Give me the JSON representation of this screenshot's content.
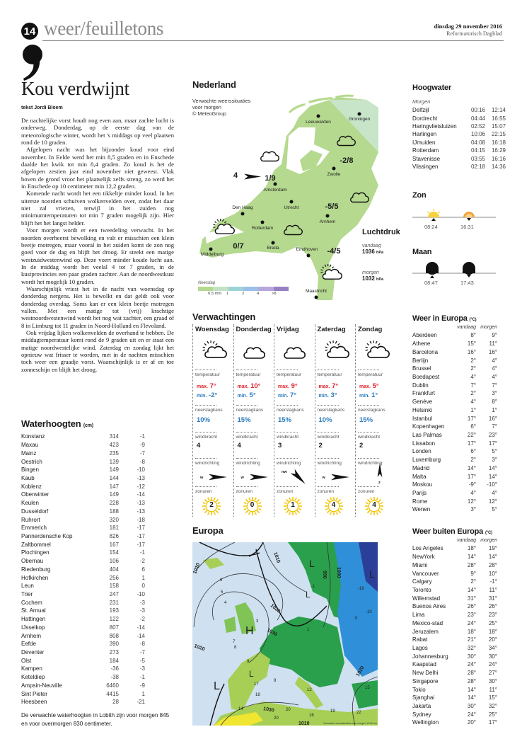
{
  "header": {
    "page_number": "14",
    "section": "weer/feuilletons",
    "date": "dinsdag 29 november 2016",
    "paper": "Reformatorisch Dagblad"
  },
  "article": {
    "title": "Kou verdwijnt",
    "byline": "tekst Jordi Bloem",
    "paragraphs": [
      "De nachtelijke vorst houdt nog even aan, maar zachte lucht is onderweg. Donderdag, op de eerste dag van de meteorologische winter, wordt het 's middags op veel plaatsen rond de 10 graden.",
      "Afgelopen nacht was het bijzonder koud voor eind november. In Eelde werd het min 8,5 graden en in Enschede daalde het kwik tot min 8,4 graden. Zo koud is het de afgelopen zestien jaar eind november niet geweest. Vlak boven de grond vroor het plaatselijk zelfs streng, zo werd het in Enschede op 10 centimeter min 12,2 graden.",
      "Komende nacht wordt het een tikkeltje minder koud. In het uiterste noorden schuiven wolkenvelden over, zodat het daar niet zal vriezen, terwijl in het zuiden nog minimumtemperaturen tot min 7 graden mogelijk zijn. Hier blijft het het langst helder.",
      "Voor morgen wordt er een tweedeling verwacht. In het noorden overheerst bewolking en valt er misschien een klein beetje motregen, maar vooral in het zuiden komt de zon nog goed voor de dag en blijft het droog. Er steekt een matige westzuidwestenwind op. Deze voert minder koude lucht aan. In de middag wordt het veelal 4 tot 7 graden, in de kustprovincies een paar graden zachter. Aan de noordwestkust wordt het mogelijk 10 graden.",
      "Waarschijnlijk vriest het in de nacht van woensdag op donderdag nergens. Het is bewolkt en dat geldt ook voor donderdag overdag. Soms kan er een klein beetje motregen vallen. Met een matige tot (vrij) krachtige westnoordwestenwind wordt het nog wat zachter, een graad of 8 in Limburg tot 11 graden in Noord-Holland en Flevoland.",
      "Ook vrijdag lijken wolkenvelden de overhand te hebben. De middagtemperatuur komt rond de 9 graden uit en er staat een matige noordwestelijke wind. Zaterdag en zondag lijkt het opnieuw wat frisser te worden, met in de nachten misschien toch weer een graadje vorst. Waarschijnlijk is er af en toe zonneschijn en blijft het droog."
    ]
  },
  "waterhoogten": {
    "title": "Waterhoogten",
    "unit": "(cm)",
    "rows": [
      [
        "Konstanz",
        "314",
        "-1"
      ],
      [
        "Maxau",
        "423",
        "-9"
      ],
      [
        "Mainz",
        "235",
        "-7"
      ],
      [
        "Oestrich",
        "139",
        "-8"
      ],
      [
        "Bingen",
        "149",
        "-10"
      ],
      [
        "Kaub",
        "144",
        "-13"
      ],
      [
        "Koblenz",
        "147",
        "-12"
      ],
      [
        "Oberwinter",
        "149",
        "-14"
      ],
      [
        "Keulen",
        "228",
        "-13"
      ],
      [
        "Dusseldorf",
        "188",
        "-13"
      ],
      [
        "Ruhrort",
        "320",
        "-18"
      ],
      [
        "Emmerich",
        "181",
        "-17"
      ],
      [
        "Pannerdensche Kop",
        "826",
        "-17"
      ],
      [
        "Zaltbommel",
        "167",
        "-17"
      ],
      [
        "Plochingen",
        "154",
        "-1"
      ],
      [
        "Obernau",
        "106",
        "-2"
      ],
      [
        "Riedenburg",
        "404",
        "6"
      ],
      [
        "Hofkirchen",
        "256",
        "1"
      ],
      [
        "Leun",
        "158",
        "0"
      ],
      [
        "Trier",
        "247",
        "-10"
      ],
      [
        "Cochem",
        "231",
        "-3"
      ],
      [
        "St. Arnual",
        "193",
        "-3"
      ],
      [
        "Hattingen",
        "122",
        "-2"
      ],
      [
        "IJsselkop",
        "807",
        "-14"
      ],
      [
        "Arnhem",
        "808",
        "-14"
      ],
      [
        "Eefde",
        "390",
        "-8"
      ],
      [
        "Deventer",
        "273",
        "-7"
      ],
      [
        "Olst",
        "184",
        "-5"
      ],
      [
        "Kampen",
        "-36",
        "-3"
      ],
      [
        "Keteldiep",
        "-38",
        "-1"
      ],
      [
        "Ampsin-Neuville",
        "6460",
        "-9"
      ],
      [
        "Sint Pieter",
        "4415",
        "1"
      ],
      [
        "Heesbeen",
        "28",
        "-21"
      ]
    ],
    "note": "De verwachte waterhoogten in Lobith zijn voor morgen 845 en voor overmorgen 830 centimeter."
  },
  "nederland": {
    "title": "Nederland",
    "subtitle": [
      "Verwachte weerssituaties",
      "voor morgen",
      "© MeteoGroup"
    ],
    "cities": [
      "Leeuwarden",
      "Groningen",
      "Zwolle",
      "Amsterdam",
      "Den Haag",
      "Utrecht",
      "Rotterdam",
      "Arnhem",
      "Breda",
      "Eindhoven",
      "Middelburg",
      "Maastricht"
    ],
    "temperatures": [
      "1/9",
      "-2/8",
      "-5/5",
      "0/7",
      "-4/5"
    ],
    "wind_force": "4",
    "luchtdruk": {
      "title": "Luchtdruk",
      "today_label": "vandaag",
      "today": "1036",
      "tomorrow_label": "morgen",
      "tomorrow": "1032",
      "unit": "hPa"
    },
    "legend": {
      "title": "Neerslag",
      "labels": [
        "0,5 mm",
        "1",
        "2",
        "4",
        ">8"
      ],
      "colors": [
        "#b5d98f",
        "#c4e2c3",
        "#9ed3d6",
        "#9bbfe6",
        "#b8a8d9",
        "#9880c4"
      ]
    }
  },
  "hoogwater": {
    "title": "Hoogwater",
    "subtitle": "Morgen",
    "rows": [
      [
        "Delfzijl",
        "00:16",
        "12:14"
      ],
      [
        "Dordrecht",
        "04:44",
        "16:55"
      ],
      [
        "Haringvlietsluizen",
        "02:52",
        "15:07"
      ],
      [
        "Harlingen",
        "10:06",
        "22:15"
      ],
      [
        "IJmuiden",
        "04:08",
        "16:18"
      ],
      [
        "Rotterdam",
        "04:15",
        "16:29"
      ],
      [
        "Stavenisse",
        "03:55",
        "16:16"
      ],
      [
        "Vlissingen",
        "02:18",
        "14:36"
      ]
    ]
  },
  "zon": {
    "title": "Zon",
    "rise": "08:24",
    "set": "16:31"
  },
  "maan": {
    "title": "Maan",
    "rise": "08:47",
    "set": "17:43"
  },
  "verwachtingen": {
    "title": "Verwachtingen",
    "labels": {
      "temp": "temperatuur",
      "max": "max.",
      "min": "min.",
      "rain": "neerslagkans",
      "wind": "windkracht",
      "dir": "windrichting",
      "sun": "zonuren"
    },
    "days": [
      {
        "name": "Woensdag",
        "icon": "sun-cloud",
        "max": "7°",
        "min": "-2°",
        "rain": "10%",
        "wind": "4",
        "dir": "w",
        "sun": "2"
      },
      {
        "name": "Donderdag",
        "icon": "cloud",
        "max": "10°",
        "min": "5°",
        "rain": "15%",
        "wind": "4",
        "dir": "w",
        "sun": "0"
      },
      {
        "name": "Vrijdag",
        "icon": "cloud",
        "max": "9°",
        "min": "7°",
        "rain": "15%",
        "wind": "3",
        "dir": "nw",
        "sun": "1"
      },
      {
        "name": "Zaterdag",
        "icon": "sun-cloud",
        "max": "7°",
        "min": "3°",
        "rain": "10%",
        "wind": "2",
        "dir": "w",
        "sun": "4"
      },
      {
        "name": "Zondag",
        "icon": "sun-cloud",
        "max": "5°",
        "min": "1°",
        "rain": "15%",
        "wind": "2",
        "dir": "z",
        "sun": "4"
      }
    ]
  },
  "europa_map": {
    "title": "Europa",
    "isobars": [
      "1010",
      "1010",
      "1020",
      "1020",
      "1030",
      "1030",
      "990",
      "1000",
      "1020",
      "1010"
    ],
    "pressure_centers": [
      "H",
      "L",
      "L",
      "L",
      "L",
      "L"
    ],
    "temps": [
      "6",
      "5",
      "4",
      "7",
      "8",
      "9",
      "3",
      "17",
      "18",
      "14",
      "20",
      "20",
      "16",
      "19",
      "12",
      "9",
      "-1",
      "-16",
      "-10",
      "0",
      "15",
      "22",
      "1"
    ],
    "credit": "Verwachte weerssituaties voor morgen 12:00 uur"
  },
  "weer_in_europa": {
    "title": "Weer in Europa",
    "unit": "(°C)",
    "col1": "vandaag",
    "col2": "morgen",
    "rows": [
      [
        "Aberdeen",
        "8°",
        "9°"
      ],
      [
        "Athene",
        "15°",
        "11°"
      ],
      [
        "Barcelona",
        "16°",
        "16°"
      ],
      [
        "Berlijn",
        "2°",
        "4°"
      ],
      [
        "Brussel",
        "2°",
        "4°"
      ],
      [
        "Boedapest",
        "4°",
        "4°"
      ],
      [
        "Dublin",
        "7°",
        "7°"
      ],
      [
        "Frankfurt",
        "2°",
        "3°"
      ],
      [
        "Genève",
        "4°",
        "8°"
      ],
      [
        "Helsinki",
        "1°",
        "1°"
      ],
      [
        "Istanbul",
        "17°",
        "16°"
      ],
      [
        "Kopenhagen",
        "6°",
        "7°"
      ],
      [
        "Las Palmas",
        "22°",
        "23°"
      ],
      [
        "Lissabon",
        "17°",
        "17°"
      ],
      [
        "Londen",
        "6°",
        "5°"
      ],
      [
        "Luxemburg",
        "2°",
        "3°"
      ],
      [
        "Madrid",
        "14°",
        "14°"
      ],
      [
        "Malta",
        "17°",
        "14°"
      ],
      [
        "Moskou",
        "-9°",
        "-10°"
      ],
      [
        "Parijs",
        "4°",
        "4°"
      ],
      [
        "Rome",
        "12°",
        "12°"
      ],
      [
        "Wenen",
        "3°",
        "5°"
      ]
    ]
  },
  "weer_buiten_europa": {
    "title": "Weer buiten Europa",
    "unit": "(°C)",
    "col1": "vandaag",
    "col2": "morgen",
    "rows": [
      [
        "Los Angeles",
        "18°",
        "19°"
      ],
      [
        "NewYork",
        "14°",
        "14°"
      ],
      [
        "Miami",
        "28°",
        "28°"
      ],
      [
        "Vancouver",
        "9°",
        "10°"
      ],
      [
        "Calgary",
        "2°",
        "-1°"
      ],
      [
        "Toronto",
        "14°",
        "11°"
      ],
      [
        "Willemstad",
        "31°",
        "31°"
      ],
      [
        "Buenos Aires",
        "26°",
        "26°"
      ],
      [
        "Lima",
        "23°",
        "23°"
      ],
      [
        "Mexico-stad",
        "24°",
        "25°"
      ],
      [
        "Jeruzalem",
        "18°",
        "18°"
      ],
      [
        "Rabat",
        "21°",
        "20°"
      ],
      [
        "Lagos",
        "32°",
        "34°"
      ],
      [
        "Johannesburg",
        "30°",
        "30°"
      ],
      [
        "Kaapstad",
        "24°",
        "24°"
      ],
      [
        "New Delhi",
        "28°",
        "27°"
      ],
      [
        "Singapore",
        "28°",
        "30°"
      ],
      [
        "Tokio",
        "14°",
        "11°"
      ],
      [
        "Sjanghai",
        "14°",
        "15°"
      ],
      [
        "Jakarta",
        "30°",
        "32°"
      ],
      [
        "Sydney",
        "24°",
        "25°"
      ],
      [
        "Wellington",
        "20°",
        "17°"
      ]
    ]
  }
}
